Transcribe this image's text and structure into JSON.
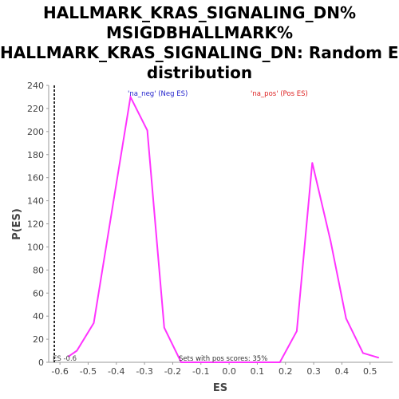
{
  "chart_data": {
    "type": "line",
    "title_lines": [
      "HALLMARK_KRAS_SIGNALING_DN%",
      "MSIGDBHALLMARK%",
      "HALLMARK_KRAS_SIGNALING_DN: Random ES",
      "distribution"
    ],
    "xlabel": "ES",
    "ylabel": "P(ES)",
    "xlim": [
      -0.64,
      0.58
    ],
    "ylim": [
      0,
      240
    ],
    "x_ticks": [
      "-0.6",
      "-0.5",
      "-0.4",
      "-0.3",
      "-0.2",
      "-0.1",
      "0.0",
      "0.1",
      "0.2",
      "0.3",
      "0.4",
      "0.5"
    ],
    "y_ticks": [
      "0",
      "20",
      "40",
      "60",
      "80",
      "100",
      "120",
      "140",
      "160",
      "180",
      "200",
      "220",
      "240"
    ],
    "series": [
      {
        "color": "#ff33ff",
        "points": [
          [
            -0.57,
            5
          ],
          [
            -0.54,
            10
          ],
          [
            -0.48,
            34
          ],
          [
            -0.41,
            140
          ],
          [
            -0.35,
            230
          ],
          [
            -0.29,
            201
          ],
          [
            -0.23,
            30
          ],
          [
            -0.17,
            0
          ],
          [
            -0.11,
            0
          ],
          [
            -0.05,
            0
          ],
          [
            0.01,
            0
          ],
          [
            0.07,
            0
          ],
          [
            0.13,
            0
          ],
          [
            0.18,
            0
          ],
          [
            0.24,
            27
          ],
          [
            0.295,
            173
          ],
          [
            0.36,
            105
          ],
          [
            0.415,
            38
          ],
          [
            0.475,
            8
          ],
          [
            0.53,
            4
          ]
        ]
      }
    ],
    "annotations": {
      "neg_label": "'na_neg' (Neg ES)",
      "neg_color": "#2222cc",
      "pos_label": "'na_pos' (Pos ES)",
      "pos_color": "#dd2222",
      "es_marker_label": "ES -0.6",
      "es_marker_value": -0.62,
      "pos_scores_label": "Sets with pos scores: 35%"
    },
    "grid": false,
    "legend": "none"
  }
}
